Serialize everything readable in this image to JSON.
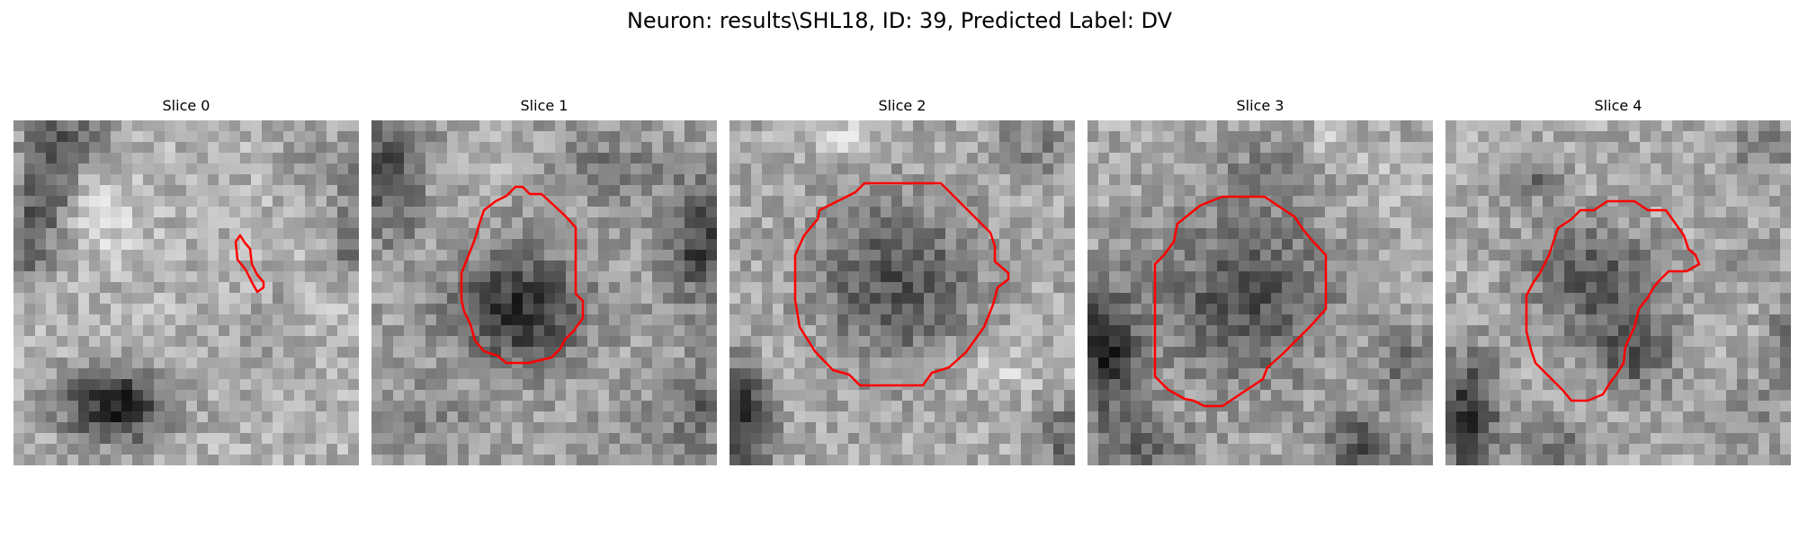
{
  "figure": {
    "title": "Neuron: results\\SHL18, ID: 39, Predicted Label: DV"
  },
  "colors": {
    "background": "#ffffff",
    "contour": "#ff0000",
    "colormap": "grayscale"
  },
  "slices": [
    {
      "label": "Slice 0",
      "description": "grayscale microscopy patch with a dark cell body at lower left and a small thin red contour at center-right"
    },
    {
      "label": "Slice 1",
      "description": "grayscale microscopy patch with a dark nucleus outlined by a red contour"
    },
    {
      "label": "Slice 2",
      "description": "grayscale microscopy patch with a round medium-gray nucleus outlined by a red contour"
    },
    {
      "label": "Slice 3",
      "description": "grayscale microscopy patch with a round medium-gray nucleus outlined by a red contour"
    },
    {
      "label": "Slice 4",
      "description": "grayscale microscopy patch with a partial nucleus outlined by a red contour"
    }
  ]
}
